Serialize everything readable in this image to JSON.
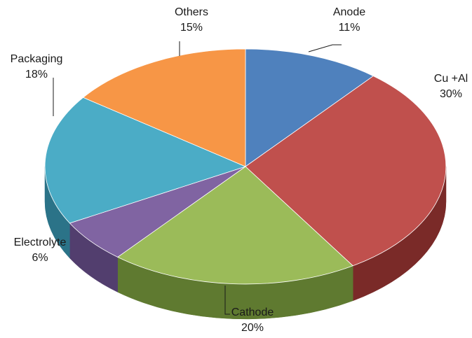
{
  "chart_data": {
    "type": "pie",
    "style": "3d",
    "title": "",
    "unit": "%",
    "slices": [
      {
        "name": "Anode",
        "value": 11,
        "label": "11%",
        "color": "#4f81bd",
        "side": "#2f5688"
      },
      {
        "name": "Cu +Al",
        "value": 30,
        "label": "30%",
        "color": "#c0504d",
        "side": "#7a2a28"
      },
      {
        "name": "Cathode",
        "value": 20,
        "label": "20%",
        "color": "#9bbb59",
        "side": "#5f7a30"
      },
      {
        "name": "Electrolyte",
        "value": 6,
        "label": "6%",
        "color": "#8064a2",
        "side": "#523e6e"
      },
      {
        "name": "Packaging",
        "value": 18,
        "label": "18%",
        "color": "#4bacc6",
        "side": "#2b7388"
      },
      {
        "name": "Others",
        "value": 15,
        "label": "15%",
        "color": "#f79646",
        "side": "#b86420"
      }
    ]
  }
}
